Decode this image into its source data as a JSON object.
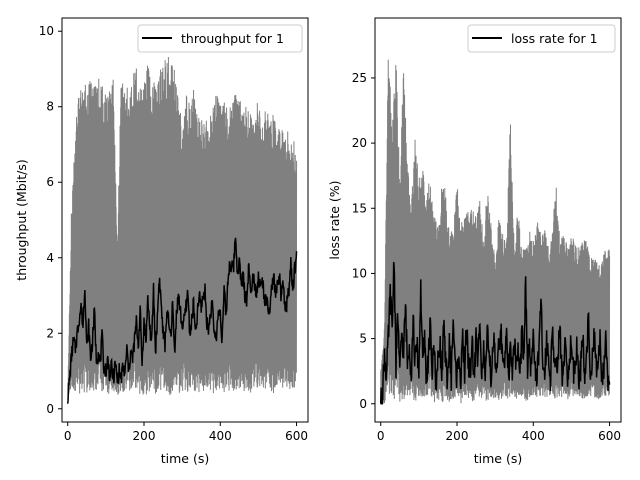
{
  "chart_data": [
    {
      "type": "line",
      "xlabel": "time (s)",
      "ylabel": "throughput (Mbit/s)",
      "xlim": [
        -15,
        630
      ],
      "ylim": [
        -0.35,
        10.35
      ],
      "xticks": [
        0,
        200,
        400,
        600
      ],
      "yticks": [
        0,
        2,
        4,
        6,
        8,
        10
      ],
      "legend_position": "top-right",
      "grid": false,
      "series": [
        {
          "name": "",
          "role": "envelope",
          "color": "#808080",
          "x": [
            0,
            10,
            20,
            30,
            40,
            50,
            60,
            70,
            80,
            90,
            100,
            110,
            120,
            130,
            140,
            150,
            160,
            170,
            180,
            190,
            200,
            210,
            220,
            230,
            240,
            250,
            260,
            270,
            280,
            290,
            300,
            310,
            320,
            330,
            340,
            350,
            360,
            370,
            380,
            390,
            400,
            410,
            420,
            430,
            440,
            450,
            460,
            470,
            480,
            490,
            500,
            510,
            520,
            530,
            540,
            550,
            560,
            570,
            580,
            590,
            600
          ],
          "upper": [
            0.3,
            5.5,
            7.5,
            8.5,
            8.6,
            8.7,
            8.7,
            8.7,
            8.8,
            8.6,
            8.6,
            8.4,
            8.8,
            4.4,
            8.9,
            8.5,
            8.6,
            8.9,
            9.1,
            8.7,
            8.6,
            9.3,
            8.8,
            8.6,
            9.0,
            9.1,
            9.4,
            9.2,
            9.0,
            8.3,
            7.6,
            8.4,
            8.1,
            8.5,
            7.7,
            7.7,
            7.6,
            7.7,
            8.0,
            8.4,
            8.0,
            8.3,
            8.1,
            8.0,
            8.4,
            8.3,
            8.0,
            8.0,
            7.8,
            7.6,
            8.3,
            7.5,
            8.1,
            7.8,
            7.8,
            7.5,
            7.4,
            7.5,
            7.3,
            7.2,
            6.9
          ],
          "lower": [
            0.2,
            0.5,
            0.4,
            0.4,
            0.4,
            0.4,
            0.5,
            0.4,
            0.4,
            0.4,
            0.4,
            0.3,
            0.4,
            0.3,
            0.4,
            0.3,
            0.4,
            0.4,
            0.4,
            0.3,
            0.3,
            0.4,
            0.3,
            0.4,
            0.3,
            0.4,
            0.4,
            0.3,
            0.3,
            0.4,
            0.4,
            0.4,
            0.4,
            0.5,
            0.4,
            0.4,
            0.5,
            0.4,
            0.4,
            0.4,
            0.5,
            0.4,
            0.5,
            0.4,
            0.5,
            0.5,
            0.4,
            0.5,
            0.4,
            0.5,
            0.5,
            0.5,
            0.5,
            0.5,
            0.4,
            0.5,
            0.4,
            0.5,
            0.5,
            0.5,
            0.5
          ]
        },
        {
          "name": "throughput for 1",
          "role": "mean",
          "color": "#000000",
          "x": [
            0,
            5,
            10,
            15,
            20,
            25,
            30,
            35,
            40,
            45,
            50,
            55,
            60,
            65,
            70,
            75,
            80,
            85,
            90,
            95,
            100,
            105,
            110,
            115,
            120,
            125,
            130,
            135,
            140,
            145,
            150,
            155,
            160,
            165,
            170,
            175,
            180,
            185,
            190,
            195,
            200,
            205,
            210,
            215,
            220,
            225,
            230,
            235,
            240,
            245,
            250,
            255,
            260,
            265,
            270,
            275,
            280,
            285,
            290,
            295,
            300,
            305,
            310,
            315,
            320,
            325,
            330,
            335,
            340,
            345,
            350,
            355,
            360,
            365,
            370,
            375,
            380,
            385,
            390,
            395,
            400,
            405,
            410,
            415,
            420,
            425,
            430,
            435,
            440,
            445,
            450,
            455,
            460,
            465,
            470,
            475,
            480,
            485,
            490,
            495,
            500,
            505,
            510,
            515,
            520,
            525,
            530,
            535,
            540,
            545,
            550,
            555,
            560,
            565,
            570,
            575,
            580,
            585,
            590,
            595,
            600
          ],
          "y": [
            0.3,
            0.8,
            1.4,
            1.8,
            1.6,
            2.0,
            2.4,
            2.7,
            2.2,
            3.3,
            1.6,
            2.2,
            1.3,
            1.8,
            2.6,
            1.3,
            1.5,
            1.2,
            1.9,
            1.1,
            1.0,
            1.3,
            0.9,
            1.1,
            0.8,
            1.2,
            0.7,
            1.0,
            0.8,
            1.1,
            0.9,
            1.6,
            1.0,
            1.5,
            1.3,
            1.8,
            2.3,
            1.7,
            2.6,
            1.2,
            2.3,
            1.8,
            2.9,
            2.2,
            1.7,
            3.2,
            1.5,
            2.4,
            3.5,
            2.8,
            2.0,
            1.7,
            2.6,
            2.2,
            1.9,
            2.8,
            1.5,
            2.5,
            3.0,
            2.6,
            2.2,
            2.3,
            2.7,
            3.1,
            2.0,
            2.3,
            2.8,
            1.9,
            2.5,
            3.0,
            2.7,
            3.0,
            3.1,
            2.3,
            2.1,
            2.6,
            2.7,
            1.9,
            2.0,
            2.5,
            2.6,
            1.8,
            3.2,
            2.4,
            3.4,
            3.9,
            3.7,
            3.8,
            4.6,
            3.6,
            3.9,
            3.3,
            3.5,
            3.0,
            2.9,
            3.9,
            2.9,
            3.7,
            3.3,
            3.1,
            3.5,
            3.2,
            3.4,
            3.0,
            2.8,
            2.7,
            2.5,
            3.2,
            3.5,
            3.0,
            3.2,
            3.5,
            2.9,
            3.3,
            2.6,
            2.8,
            3.2,
            3.8,
            3.1,
            3.7,
            4.1
          ]
        }
      ]
    },
    {
      "type": "line",
      "xlabel": "time (s)",
      "ylabel": "loss rate (%)",
      "xlim": [
        -15,
        630
      ],
      "ylim": [
        -1.4,
        29.6
      ],
      "xticks": [
        0,
        200,
        400,
        600
      ],
      "yticks": [
        0,
        5,
        10,
        15,
        20,
        25
      ],
      "legend_position": "top-right",
      "grid": false,
      "series": [
        {
          "name": "",
          "role": "envelope",
          "color": "#808080",
          "x": [
            0,
            10,
            20,
            30,
            40,
            50,
            60,
            70,
            80,
            90,
            100,
            110,
            120,
            130,
            140,
            150,
            160,
            170,
            180,
            190,
            200,
            210,
            220,
            230,
            240,
            250,
            260,
            270,
            280,
            290,
            300,
            310,
            320,
            330,
            340,
            350,
            360,
            370,
            380,
            390,
            400,
            410,
            420,
            430,
            440,
            450,
            460,
            470,
            480,
            490,
            500,
            510,
            520,
            530,
            540,
            550,
            560,
            570,
            580,
            590,
            600
          ],
          "upper": [
            2.5,
            6.0,
            28.0,
            22.0,
            26.8,
            17.0,
            26.5,
            19.0,
            15.0,
            20.5,
            17.5,
            18.0,
            16.0,
            17.5,
            14.5,
            13.5,
            17.0,
            16.5,
            13.0,
            13.5,
            17.0,
            14.0,
            14.5,
            15.0,
            15.0,
            14.5,
            16.0,
            12.5,
            17.0,
            13.5,
            11.0,
            14.5,
            13.0,
            12.5,
            22.5,
            12.0,
            15.5,
            11.5,
            12.5,
            13.5,
            12.5,
            14.5,
            13.0,
            13.5,
            12.0,
            13.5,
            17.0,
            12.5,
            13.0,
            12.0,
            13.0,
            12.5,
            12.0,
            12.5,
            13.0,
            11.0,
            12.0,
            10.5,
            11.0,
            12.0,
            12.0
          ],
          "lower": [
            0.0,
            0.0,
            0.5,
            0.0,
            0.5,
            0.0,
            0.3,
            0.0,
            0.5,
            0.0,
            0.0,
            0.3,
            0.0,
            0.5,
            0.0,
            0.3,
            0.0,
            0.5,
            0.0,
            0.3,
            0.5,
            0.0,
            0.5,
            0.3,
            0.0,
            0.5,
            0.3,
            0.5,
            0.0,
            0.3,
            0.5,
            0.0,
            0.5,
            0.3,
            0.5,
            0.5,
            0.3,
            0.5,
            0.0,
            0.5,
            0.3,
            0.5,
            0.5,
            0.3,
            0.5,
            0.5,
            0.3,
            0.5,
            0.5,
            0.3,
            0.5,
            0.5,
            0.5,
            0.3,
            0.5,
            0.5,
            0.5,
            0.3,
            0.5,
            0.5,
            0.5
          ]
        },
        {
          "name": "loss rate for 1",
          "role": "mean",
          "color": "#000000",
          "x": [
            0,
            5,
            10,
            15,
            20,
            25,
            30,
            35,
            40,
            45,
            50,
            55,
            60,
            65,
            70,
            75,
            80,
            85,
            90,
            95,
            100,
            105,
            110,
            115,
            120,
            125,
            130,
            135,
            140,
            145,
            150,
            155,
            160,
            165,
            170,
            175,
            180,
            185,
            190,
            195,
            200,
            205,
            210,
            215,
            220,
            225,
            230,
            235,
            240,
            245,
            250,
            255,
            260,
            265,
            270,
            275,
            280,
            285,
            290,
            295,
            300,
            305,
            310,
            315,
            320,
            325,
            330,
            335,
            340,
            345,
            350,
            355,
            360,
            365,
            370,
            375,
            380,
            385,
            390,
            395,
            400,
            405,
            410,
            415,
            420,
            425,
            430,
            435,
            440,
            445,
            450,
            455,
            460,
            465,
            470,
            475,
            480,
            485,
            490,
            495,
            500,
            505,
            510,
            515,
            520,
            525,
            530,
            535,
            540,
            545,
            550,
            555,
            560,
            565,
            570,
            575,
            580,
            585,
            590,
            595,
            600
          ],
          "y": [
            0.0,
            1.0,
            4.0,
            2.0,
            5.0,
            8.5,
            5.5,
            11.5,
            3.0,
            7.0,
            2.0,
            5.5,
            4.0,
            7.5,
            3.0,
            5.0,
            2.0,
            6.5,
            3.0,
            4.5,
            2.5,
            9.0,
            3.0,
            5.0,
            2.0,
            3.5,
            6.0,
            2.5,
            4.5,
            1.5,
            3.0,
            5.0,
            2.0,
            6.0,
            3.0,
            2.0,
            4.5,
            2.0,
            6.5,
            3.0,
            2.0,
            4.0,
            1.5,
            5.0,
            2.5,
            6.0,
            3.0,
            2.5,
            4.5,
            2.0,
            5.0,
            3.0,
            7.0,
            2.5,
            4.0,
            2.0,
            5.5,
            3.0,
            2.0,
            5.0,
            3.5,
            2.0,
            4.5,
            6.0,
            2.5,
            3.0,
            6.5,
            2.0,
            4.0,
            2.5,
            5.0,
            3.0,
            4.0,
            2.0,
            5.5,
            3.0,
            9.5,
            2.5,
            4.5,
            2.0,
            5.5,
            3.0,
            2.0,
            4.0,
            8.0,
            3.0,
            2.5,
            5.0,
            3.5,
            2.0,
            6.0,
            3.0,
            2.5,
            4.0,
            5.5,
            2.0,
            3.5,
            4.5,
            2.0,
            3.5,
            5.0,
            2.5,
            3.0,
            4.5,
            2.0,
            3.0,
            5.0,
            2.5,
            4.0,
            6.5,
            2.0,
            3.5,
            5.0,
            2.5,
            3.0,
            5.0,
            2.0,
            3.0,
            5.5,
            2.0,
            1.5
          ]
        }
      ]
    }
  ]
}
